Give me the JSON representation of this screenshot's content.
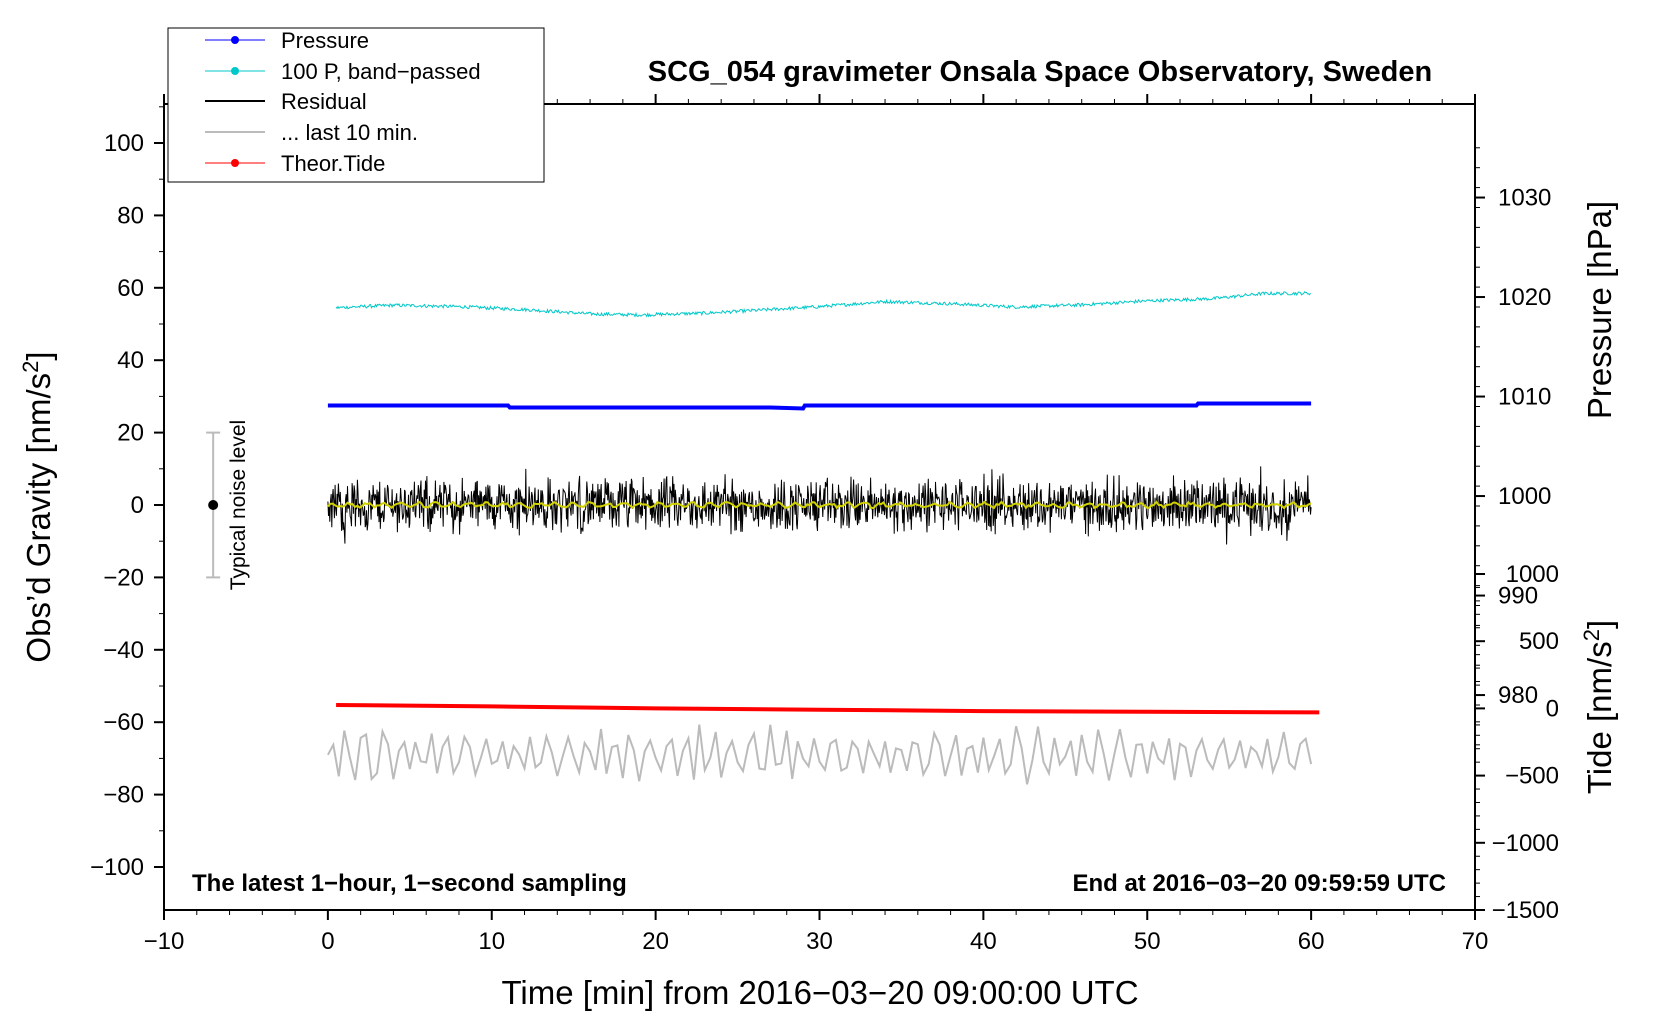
{
  "chart_data": {
    "type": "line",
    "title": "SCG_054 gravimeter Onsala Space Observatory, Sweden",
    "note_left": "The latest 1−hour, 1−second sampling",
    "note_right": "End at 2016−03−20 09:59:59 UTC",
    "xlabel": "Time [min] from 2016−03−20 09:00:00 UTC",
    "ylabel": "Obs’d Gravity [nm/s",
    "ylabel_sup": "2",
    "ylabel_end": "]",
    "y2label": "Pressure [hPa]",
    "y3label": "Tide [nm/s",
    "y3label_sup": "2",
    "y3label_end": "]",
    "xlim": [
      -10,
      70
    ],
    "ylim": [
      -105,
      112
    ],
    "x_ticks": [
      "−10",
      "0",
      "10",
      "20",
      "30",
      "40",
      "50",
      "60",
      "70"
    ],
    "y_ticks": [
      "100",
      "80",
      "60",
      "40",
      "20",
      "0",
      "−20",
      "−40",
      "−60",
      "−80",
      "−100"
    ],
    "pressure_axis": {
      "ticks": [
        "1030",
        "1020",
        "1010",
        "1000",
        "990",
        "980"
      ],
      "range_hpa": [
        1039.4,
        958.4
      ]
    },
    "tide_axis": {
      "ticks": [
        "1000",
        "500",
        "0",
        "−500",
        "−1000",
        "−1500"
      ],
      "range": [
        1000,
        -1500
      ]
    },
    "noise_bar": {
      "label": "Typical noise level",
      "x": -7,
      "center": 0,
      "half_range": 20
    },
    "series": [
      {
        "name": "Pressure",
        "color": "#0000ff",
        "axis": "pressure",
        "x": [
          0,
          11,
          11.1,
          27,
          29,
          29.1,
          53,
          53.1,
          60
        ],
        "y": [
          1009.1,
          1009.1,
          1008.9,
          1008.9,
          1008.8,
          1009.1,
          1009.1,
          1009.3,
          1009.3
        ]
      },
      {
        "name": "100 P, band−passed",
        "color": "#00c8c8",
        "axis": "gravity",
        "x": [
          0.5,
          4,
          8,
          12,
          16,
          19,
          23,
          27,
          30,
          34,
          38,
          42,
          46,
          50,
          54,
          57,
          60
        ],
        "y": [
          54.5,
          55.2,
          54.8,
          54.0,
          52.8,
          52.5,
          53.0,
          54.0,
          54.8,
          56.2,
          55.6,
          54.7,
          55.3,
          56.4,
          57.0,
          58.4,
          58.5
        ]
      },
      {
        "name": "Residual",
        "color": "#000000",
        "axis": "gravity",
        "center": 0,
        "amplitude": 9,
        "x_range": [
          0,
          60
        ]
      },
      {
        "name": "... last 10 min.",
        "color": "#bbbbbb",
        "axis": "gravity",
        "center": -69,
        "amplitude": 8,
        "x_range": [
          0,
          60
        ]
      },
      {
        "name": "Theor.Tide",
        "color": "#ff0000",
        "axis": "tide",
        "x": [
          0.5,
          10,
          20,
          30,
          40,
          50,
          60.5
        ],
        "y": [
          25,
          15,
          0,
          -10,
          -20,
          -25,
          -30
        ]
      }
    ],
    "legend_position": "top-left",
    "smooth_residual_color": "#d2d200"
  }
}
